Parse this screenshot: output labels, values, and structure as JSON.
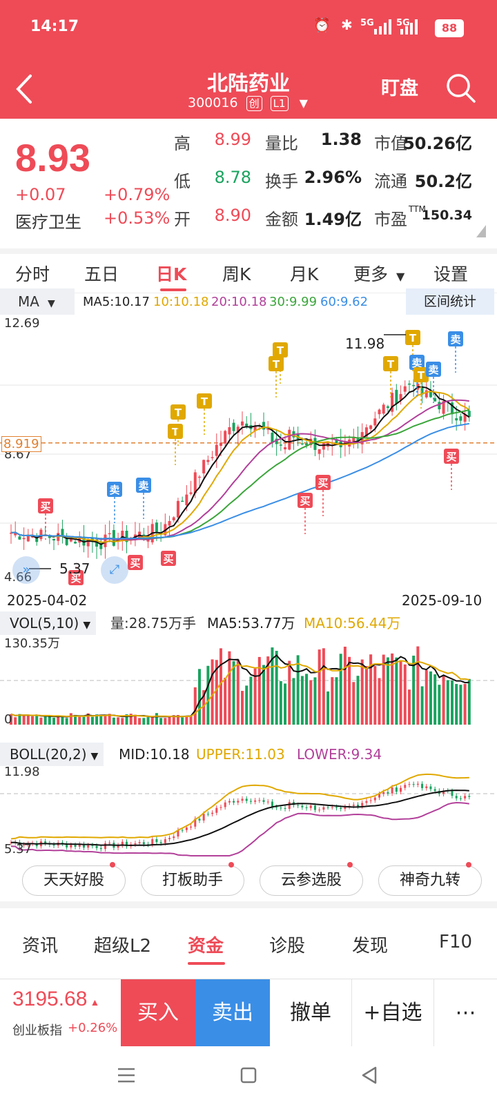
{
  "status_bar": {
    "time": "14:17",
    "battery": "88",
    "signal1": "5G",
    "signal2": "5G"
  },
  "header": {
    "title": "北陆药业",
    "code": "300016",
    "tag1": "创",
    "tag2": "L1",
    "watch_label": "盯盘"
  },
  "quote": {
    "price": "8.93",
    "change": "+0.07",
    "change_pct": "+0.79%",
    "sector": "医疗卫生",
    "sector_pct": "+0.53%",
    "fields": [
      {
        "label": "高",
        "value": "8.99",
        "color": "#ee4b57"
      },
      {
        "label": "量比",
        "value": "1.38",
        "color": "#222"
      },
      {
        "label": "市值",
        "value": "50.26亿",
        "color": "#222"
      },
      {
        "label": "低",
        "value": "8.78",
        "color": "#1aa35f"
      },
      {
        "label": "换手",
        "value": "2.96%",
        "color": "#222"
      },
      {
        "label": "流通",
        "value": "50.2亿",
        "color": "#222"
      },
      {
        "label": "开",
        "value": "8.90",
        "color": "#ee4b57"
      },
      {
        "label": "金额",
        "value": "1.49亿",
        "color": "#222"
      },
      {
        "label": "市盈",
        "value": "150.34",
        "color": "#222"
      }
    ],
    "pe_sup": "TTM"
  },
  "tabs": [
    "分时",
    "五日",
    "日K",
    "周K",
    "月K",
    "更多",
    "设置"
  ],
  "active_tab": "日K",
  "ma_bar": {
    "select": "MA",
    "ma5": "MA5:10.17",
    "ma10": "10:10.18",
    "ma20": "20:10.18",
    "ma30": "30:9.99",
    "ma60": "60:9.62",
    "range_stat": "区间统计"
  },
  "kline": {
    "y_high": "12.69",
    "y_mid": "8.67",
    "y_low": "4.66",
    "cur_price": "8.919",
    "high_mark": "11.98",
    "low_mark": "5.37",
    "date_start": "2025-04-02",
    "date_end": "2025-09-10",
    "sig_buy": "买",
    "sig_sell": "卖",
    "sig_t": "T"
  },
  "vol": {
    "select": "VOL(5,10)",
    "vol": "量:28.75万手",
    "ma5": "MA5:53.77万",
    "ma10": "MA10:56.44万",
    "y_top": "130.35万",
    "y_bottom": "0"
  },
  "boll": {
    "select": "BOLL(20,2)",
    "mid": "MID:10.18",
    "upper": "UPPER:11.03",
    "lower": "LOWER:9.34",
    "y_top": "11.98",
    "y_bottom": "5.37"
  },
  "features": [
    "天天好股",
    "打板助手",
    "云参选股",
    "神奇九转"
  ],
  "bottom_tabs": [
    "资讯",
    "超级L2",
    "资金",
    "诊股",
    "发现",
    "F10"
  ],
  "active_bottom_tab": "资金",
  "index": {
    "value": "3195.68",
    "name": "创业板指",
    "pct": "+0.26%"
  },
  "actions": {
    "buy": "买入",
    "sell": "卖出",
    "cancel": "撤单",
    "add": "+自选",
    "more": "⋯"
  },
  "colors": {
    "red": "#ee4b57",
    "green": "#1aa35f",
    "blue": "#3a8ee6",
    "gold": "#e0a800"
  }
}
